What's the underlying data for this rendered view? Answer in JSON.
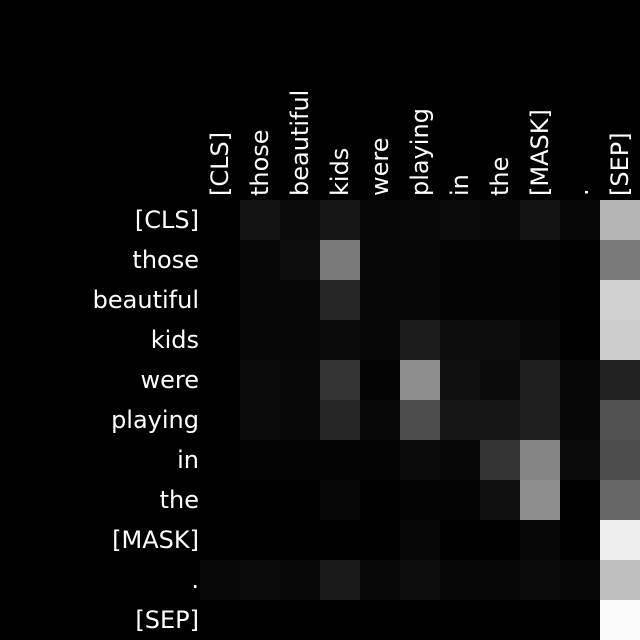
{
  "chart_data": {
    "type": "heatmap",
    "title": "",
    "xlabel": "",
    "ylabel": "",
    "x_labels": [
      "[CLS]",
      "those",
      "beautiful",
      "kids",
      "were",
      "playing",
      "in",
      "the",
      "[MASK]",
      ".",
      "[SEP]"
    ],
    "y_labels": [
      "[CLS]",
      "those",
      "beautiful",
      "kids",
      "were",
      "playing",
      "in",
      "the",
      "[MASK]",
      ".",
      "[SEP]"
    ],
    "colormap": "grayscale",
    "value_range": [
      0,
      1
    ],
    "values": [
      [
        0.0,
        0.07,
        0.04,
        0.08,
        0.02,
        0.03,
        0.04,
        0.03,
        0.07,
        0.02,
        0.71
      ],
      [
        0.0,
        0.02,
        0.05,
        0.48,
        0.02,
        0.02,
        0.01,
        0.01,
        0.01,
        0.0,
        0.48
      ],
      [
        0.0,
        0.02,
        0.02,
        0.15,
        0.02,
        0.02,
        0.01,
        0.01,
        0.01,
        0.0,
        0.82
      ],
      [
        0.0,
        0.02,
        0.02,
        0.04,
        0.02,
        0.11,
        0.05,
        0.05,
        0.03,
        0.0,
        0.8
      ],
      [
        0.0,
        0.04,
        0.03,
        0.2,
        0.01,
        0.55,
        0.06,
        0.04,
        0.12,
        0.02,
        0.13
      ],
      [
        0.0,
        0.04,
        0.03,
        0.15,
        0.03,
        0.3,
        0.08,
        0.08,
        0.12,
        0.02,
        0.32
      ],
      [
        0.0,
        0.01,
        0.01,
        0.01,
        0.01,
        0.04,
        0.02,
        0.2,
        0.52,
        0.04,
        0.3
      ],
      [
        0.0,
        0.0,
        0.0,
        0.02,
        0.0,
        0.01,
        0.01,
        0.06,
        0.55,
        0.0,
        0.4
      ],
      [
        0.0,
        0.0,
        0.0,
        0.0,
        0.0,
        0.02,
        0.0,
        0.0,
        0.02,
        0.0,
        0.93
      ],
      [
        0.03,
        0.04,
        0.03,
        0.1,
        0.03,
        0.05,
        0.02,
        0.02,
        0.04,
        0.02,
        0.75
      ],
      [
        0.0,
        0.0,
        0.0,
        0.0,
        0.0,
        0.0,
        0.0,
        0.0,
        0.0,
        0.0,
        0.98
      ]
    ]
  }
}
